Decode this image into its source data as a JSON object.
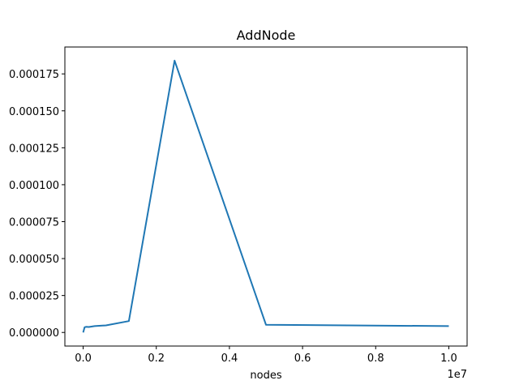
{
  "chart_data": {
    "type": "line",
    "title": "AddNode",
    "x_label": "nodes",
    "x_offset_label": "1e7",
    "x": [
      1000,
      39062,
      78125,
      156250,
      312500,
      625000,
      1250000,
      2500000,
      5000000,
      10000000
    ],
    "series": [
      {
        "color": "#1f77b4",
        "values": [
          0,
          3.5e-06,
          3.8e-06,
          3.7e-06,
          4.3e-06,
          4.8e-06,
          7.7e-06,
          0.000184,
          5.2e-06,
          4.3e-06
        ]
      }
    ],
    "xlim": [
      -500000,
      10500000
    ],
    "xticks": [
      {
        "value": 0,
        "label": "0.0"
      },
      {
        "value": 2000000,
        "label": "0.2"
      },
      {
        "value": 4000000,
        "label": "0.4"
      },
      {
        "value": 6000000,
        "label": "0.6"
      },
      {
        "value": 8000000,
        "label": "0.8"
      },
      {
        "value": 10000000,
        "label": "1.0"
      }
    ],
    "ylim": [
      -9.2e-06,
      0.0001932
    ],
    "yticks": [
      {
        "value": 0,
        "label": "0.000000"
      },
      {
        "value": 2.5e-05,
        "label": "0.000025"
      },
      {
        "value": 5e-05,
        "label": "0.000050"
      },
      {
        "value": 7.5e-05,
        "label": "0.000075"
      },
      {
        "value": 0.0001,
        "label": "0.000100"
      },
      {
        "value": 0.000125,
        "label": "0.000125"
      },
      {
        "value": 0.00015,
        "label": "0.000150"
      },
      {
        "value": 0.000175,
        "label": "0.000175"
      }
    ]
  }
}
